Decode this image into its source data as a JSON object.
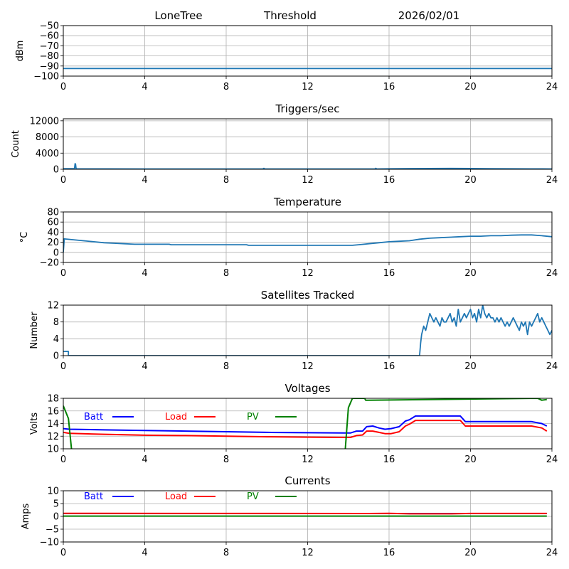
{
  "header": {
    "station": "LoneTree",
    "mode": "Threshold",
    "date": "2026/02/01"
  },
  "chart_data": [
    {
      "type": "line",
      "title": "",
      "ylabel": "dBm",
      "xlim": [
        0,
        24
      ],
      "ylim": [
        -100,
        -50
      ],
      "xticks": [
        0,
        4,
        8,
        12,
        16,
        20,
        24
      ],
      "yticks": [
        -100,
        -90,
        -80,
        -70,
        -60,
        -50
      ],
      "ytick_labels": [
        "−100",
        "−90",
        "−80",
        "−70",
        "−60",
        "−50"
      ],
      "grid": true,
      "series": [
        {
          "name": "threshold",
          "color": "#1f77b4",
          "x": [
            0,
            24
          ],
          "y": [
            -92.5,
            -92.5
          ]
        }
      ]
    },
    {
      "type": "line",
      "title": "Triggers/sec",
      "ylabel": "Count",
      "xlim": [
        0,
        24
      ],
      "ylim": [
        0,
        12500
      ],
      "xticks": [
        0,
        4,
        8,
        12,
        16,
        20,
        24
      ],
      "yticks": [
        0,
        4000,
        8000,
        12000
      ],
      "ytick_labels": [
        "0",
        "4000",
        "8000",
        "12000"
      ],
      "grid": true,
      "series": [
        {
          "name": "triggers",
          "color": "#1f77b4",
          "x": [
            0,
            0.55,
            0.58,
            0.6,
            0.63,
            0.66,
            2,
            4,
            8,
            9.8,
            9.85,
            9.9,
            12,
            15.3,
            15.35,
            15.4,
            16,
            17,
            18,
            19,
            20,
            21,
            22,
            23,
            24
          ],
          "y": [
            150,
            150,
            1400,
            1300,
            150,
            120,
            100,
            80,
            80,
            80,
            250,
            80,
            80,
            80,
            250,
            80,
            120,
            180,
            200,
            220,
            200,
            150,
            120,
            100,
            80
          ]
        }
      ]
    },
    {
      "type": "line",
      "title": "Temperature",
      "ylabel": "°C",
      "ylabel_prefix": "o",
      "xlim": [
        0,
        24
      ],
      "ylim": [
        -20,
        80
      ],
      "xticks": [
        0,
        4,
        8,
        12,
        16,
        20,
        24
      ],
      "yticks": [
        -20,
        0,
        20,
        40,
        60,
        80
      ],
      "ytick_labels": [
        "−20",
        "0",
        "20",
        "40",
        "60",
        "80"
      ],
      "grid": true,
      "series": [
        {
          "name": "temperature",
          "color": "#1f77b4",
          "x": [
            0,
            0.05,
            0.1,
            0.5,
            1,
            1.5,
            2,
            2.5,
            3,
            3.5,
            4,
            5.2,
            5.3,
            8,
            9,
            9.1,
            12,
            14.2,
            14.5,
            15,
            15.5,
            16,
            16.5,
            17,
            17.5,
            18,
            18.5,
            19,
            19.5,
            20,
            20.5,
            21,
            21.5,
            22,
            22.5,
            23,
            23.5,
            24
          ],
          "y": [
            0,
            27,
            26.5,
            25,
            23,
            21,
            19,
            18,
            17,
            16,
            16,
            16,
            15,
            15,
            15,
            14,
            14,
            14,
            15,
            17,
            19,
            21,
            22,
            23,
            26,
            28,
            29,
            30,
            31,
            32,
            32,
            33,
            33,
            34,
            34.5,
            34.5,
            33,
            31
          ]
        }
      ]
    },
    {
      "type": "line",
      "title": "Satellites Tracked",
      "ylabel": "Number",
      "xlim": [
        0,
        24
      ],
      "ylim": [
        0,
        12
      ],
      "xticks": [
        0,
        4,
        8,
        12,
        16,
        20,
        24
      ],
      "yticks": [
        0,
        4,
        8,
        12
      ],
      "ytick_labels": [
        "0",
        "4",
        "8",
        "12"
      ],
      "grid": true,
      "series": [
        {
          "name": "satellites",
          "color": "#1f77b4",
          "x": [
            0,
            0.25,
            0.25,
            17.5,
            17.55,
            17.6,
            17.7,
            17.8,
            17.9,
            18.0,
            18.1,
            18.2,
            18.3,
            18.4,
            18.5,
            18.6,
            18.7,
            18.8,
            18.9,
            19.0,
            19.1,
            19.2,
            19.3,
            19.4,
            19.5,
            19.6,
            19.7,
            19.8,
            19.9,
            20.0,
            20.1,
            20.2,
            20.3,
            20.4,
            20.5,
            20.6,
            20.7,
            20.8,
            20.9,
            21.0,
            21.1,
            21.2,
            21.3,
            21.4,
            21.5,
            21.6,
            21.7,
            21.8,
            21.9,
            22.0,
            22.1,
            22.2,
            22.3,
            22.4,
            22.5,
            22.6,
            22.7,
            22.8,
            22.9,
            23.0,
            23.1,
            23.2,
            23.3,
            23.4,
            23.5,
            23.6,
            23.7,
            23.8,
            23.9,
            24.0
          ],
          "y": [
            1,
            1,
            0,
            0,
            3,
            5,
            7,
            6,
            8,
            10,
            9,
            8,
            9,
            8,
            7,
            9,
            8,
            8,
            9,
            10,
            8,
            9,
            7,
            11,
            8,
            9,
            10,
            9,
            10,
            11,
            9,
            10,
            8,
            11,
            9,
            12,
            10,
            9,
            10,
            9,
            9,
            8,
            9,
            8,
            9,
            8,
            7,
            8,
            7,
            8,
            9,
            8,
            7,
            6,
            8,
            7,
            8,
            5,
            8,
            7,
            8,
            9,
            10,
            8,
            9,
            8,
            7,
            6,
            5,
            6
          ]
        }
      ]
    },
    {
      "type": "line",
      "title": "Voltages",
      "ylabel": "Volts",
      "xlim": [
        0,
        24
      ],
      "ylim": [
        10,
        18
      ],
      "xticks": [
        0,
        4,
        8,
        12,
        16,
        20,
        24
      ],
      "yticks": [
        10,
        12,
        14,
        16,
        18
      ],
      "ytick_labels": [
        "10",
        "12",
        "14",
        "16",
        "18"
      ],
      "grid": true,
      "legend": {
        "placement": "top-left",
        "entries": [
          "Batt",
          "Load",
          "PV"
        ]
      },
      "series": [
        {
          "name": "Batt",
          "color": "#0000ff",
          "x": [
            0,
            0.3,
            2,
            4,
            6,
            8,
            10,
            12,
            13.8,
            14.1,
            14.4,
            14.7,
            14.9,
            15.2,
            15.5,
            15.8,
            16.1,
            16.5,
            16.8,
            17.0,
            17.3,
            18,
            19,
            19.5,
            19.75,
            20,
            21,
            22,
            23,
            23.5,
            23.75
          ],
          "y": [
            13.2,
            13.1,
            13.0,
            12.9,
            12.8,
            12.7,
            12.6,
            12.55,
            12.5,
            12.5,
            12.8,
            12.8,
            13.5,
            13.6,
            13.3,
            13.1,
            13.2,
            13.5,
            14.4,
            14.6,
            15.2,
            15.2,
            15.2,
            15.2,
            14.3,
            14.3,
            14.3,
            14.3,
            14.3,
            14.0,
            13.6
          ]
        },
        {
          "name": "Load",
          "color": "#ff0000",
          "x": [
            0,
            0.3,
            2,
            4,
            6,
            8,
            10,
            12,
            13.8,
            14.1,
            14.4,
            14.7,
            14.9,
            15.2,
            15.5,
            15.8,
            16.1,
            16.5,
            16.8,
            17.0,
            17.3,
            18,
            19,
            19.5,
            19.75,
            20,
            21,
            22,
            23,
            23.5,
            23.75
          ],
          "y": [
            12.6,
            12.45,
            12.3,
            12.15,
            12.1,
            12.0,
            11.9,
            11.85,
            11.8,
            11.8,
            12.1,
            12.2,
            12.8,
            12.8,
            12.6,
            12.4,
            12.4,
            12.7,
            13.6,
            13.9,
            14.5,
            14.5,
            14.5,
            14.5,
            13.6,
            13.6,
            13.6,
            13.6,
            13.6,
            13.3,
            12.8
          ]
        },
        {
          "name": "PV",
          "color": "#008000",
          "x": [
            0,
            0.25,
            0.4,
            0.5,
            13.8,
            13.85,
            14.0,
            14.2,
            14.8,
            14.85,
            23.3,
            23.5,
            23.75
          ],
          "y": [
            16.8,
            14.8,
            10.0,
            5.0,
            5.0,
            10.0,
            16.5,
            18.0,
            18.0,
            17.7,
            18.0,
            17.7,
            17.8
          ]
        }
      ]
    },
    {
      "type": "line",
      "title": "Currents",
      "ylabel": "Amps",
      "xlim": [
        0,
        24
      ],
      "ylim": [
        -10,
        10
      ],
      "xticks": [
        0,
        4,
        8,
        12,
        16,
        20,
        24
      ],
      "yticks": [
        -10,
        -5,
        0,
        5,
        10
      ],
      "ytick_labels": [
        "−10",
        "−5",
        "0",
        "5",
        "10"
      ],
      "grid": true,
      "legend": {
        "placement": "top-left",
        "entries": [
          "Batt",
          "Load",
          "PV"
        ]
      },
      "series": [
        {
          "name": "Batt",
          "color": "#0000ff",
          "x": [
            0,
            23.75
          ],
          "y": [
            1.1,
            1.1
          ]
        },
        {
          "name": "Load",
          "color": "#ff0000",
          "x": [
            0,
            15,
            16,
            17,
            19,
            20,
            23.75
          ],
          "y": [
            1.2,
            1.1,
            1.2,
            1.0,
            1.0,
            1.15,
            1.15
          ]
        },
        {
          "name": "PV",
          "color": "#008000",
          "x": [
            0,
            23.75
          ],
          "y": [
            0.1,
            0.1
          ]
        }
      ]
    }
  ]
}
